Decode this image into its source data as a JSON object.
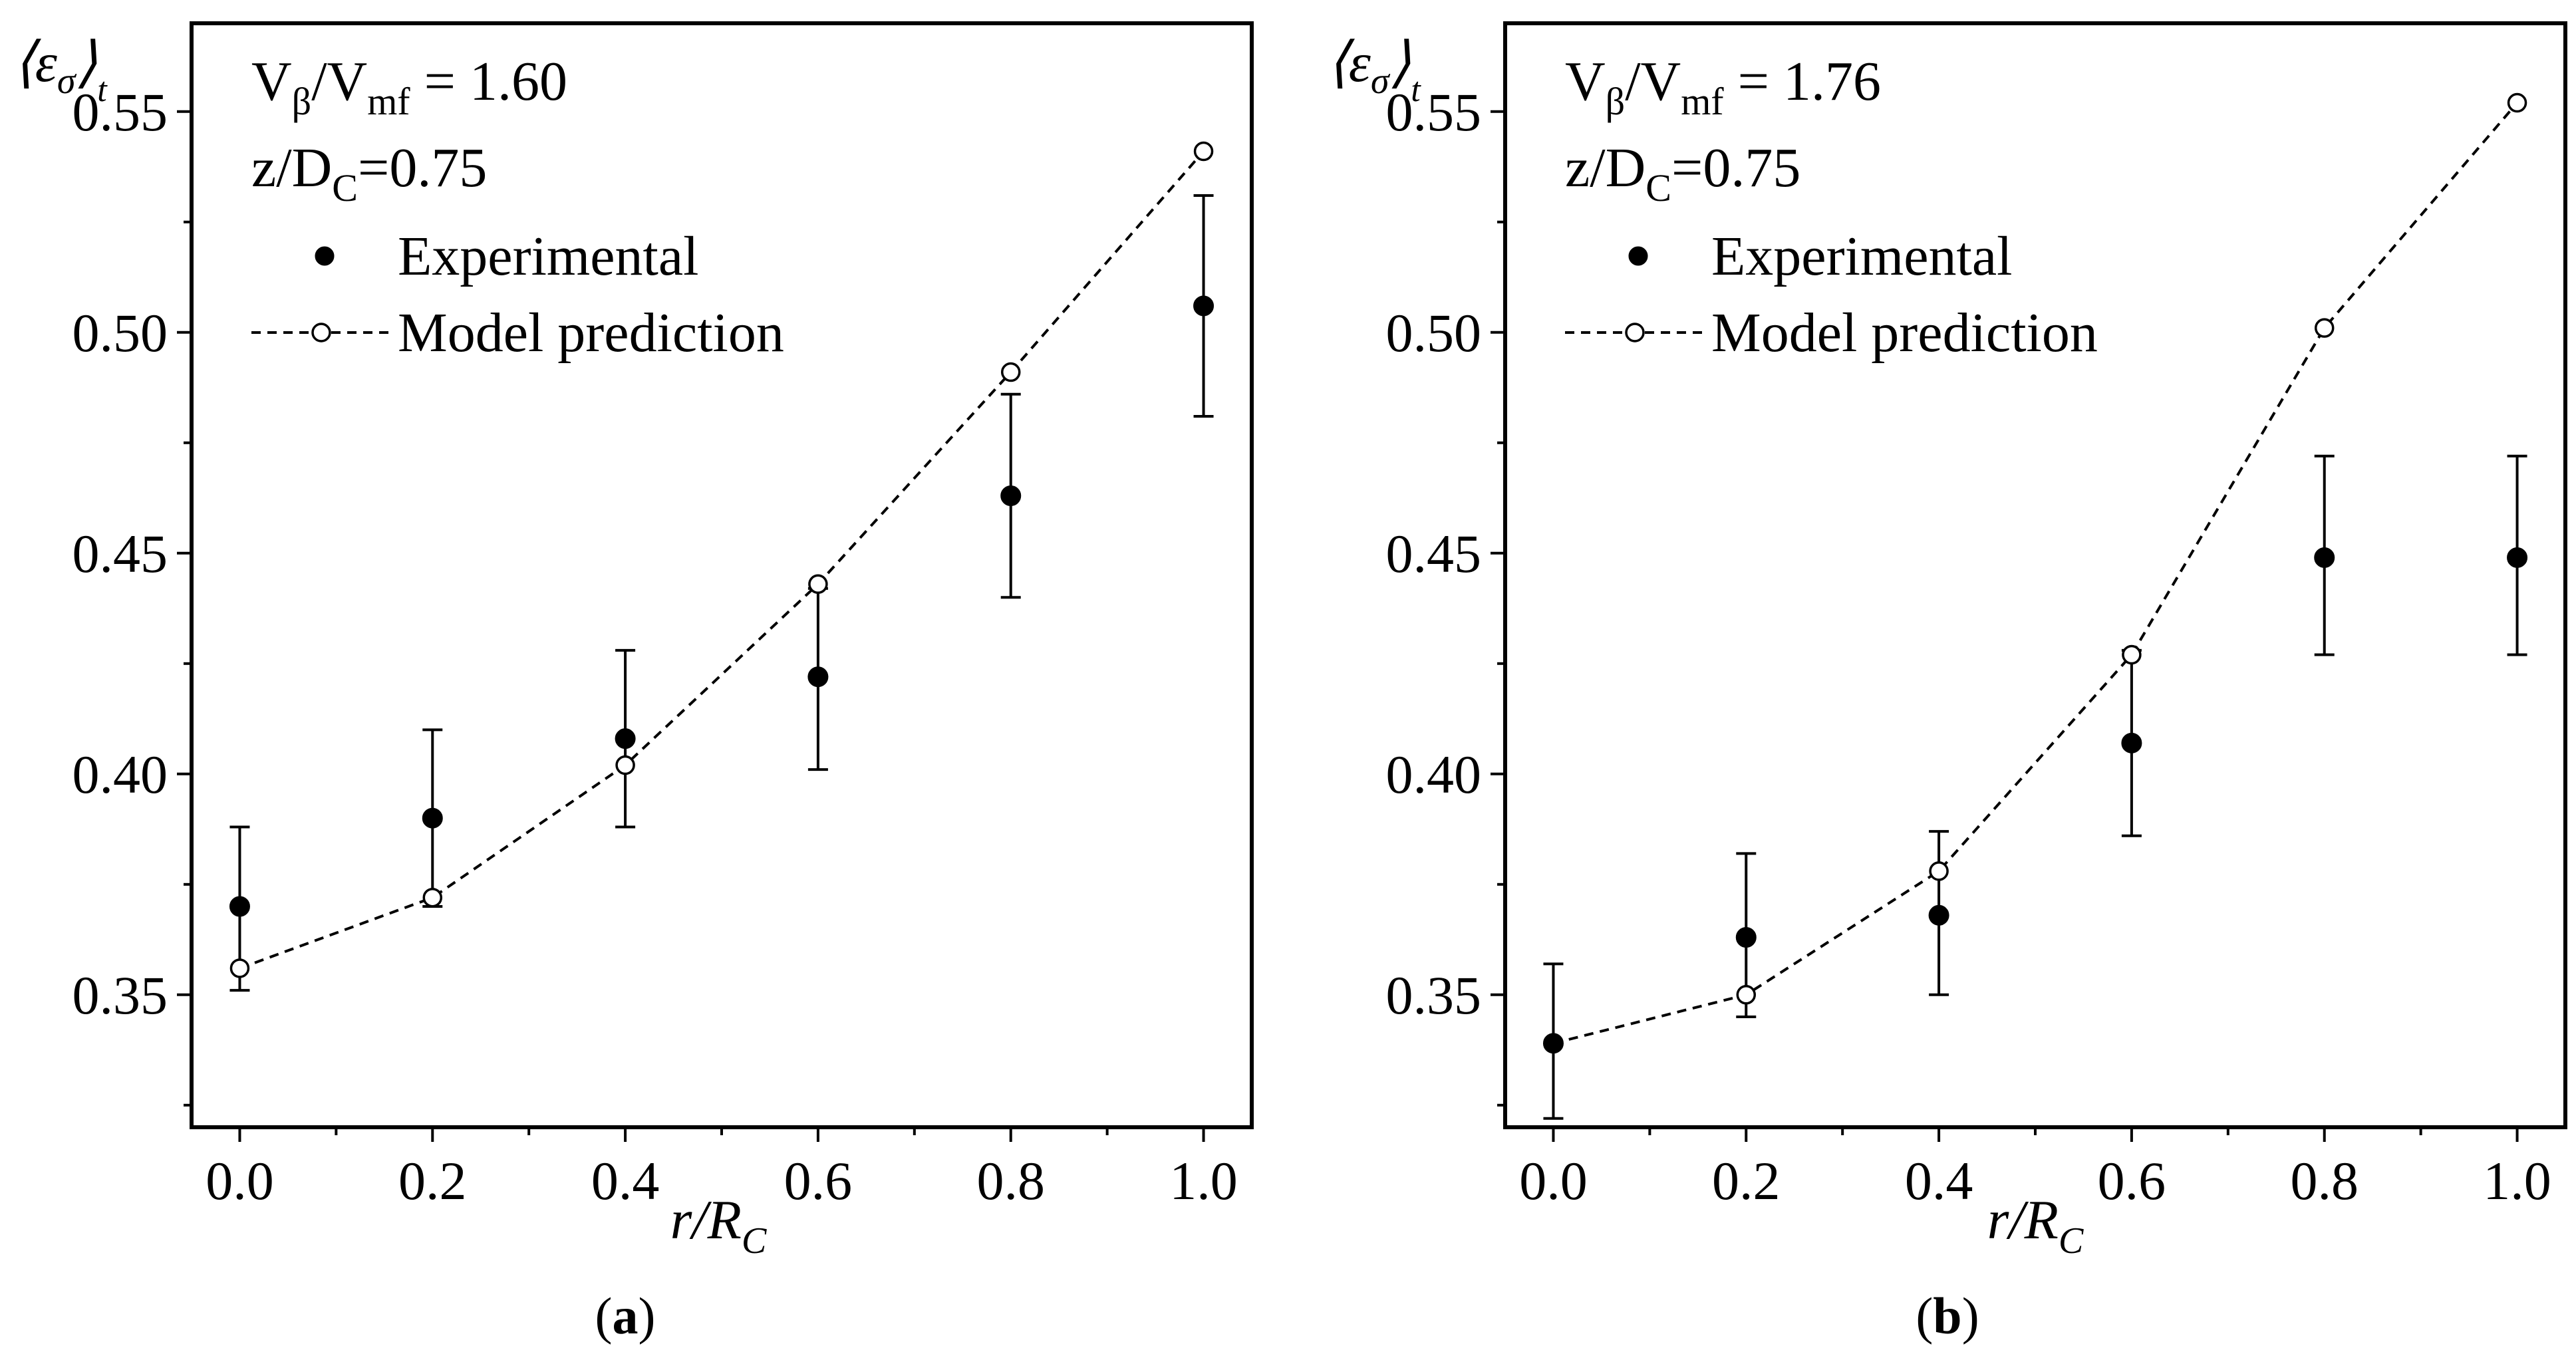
{
  "chart_data": [
    {
      "type": "scatter",
      "panel_label": "a",
      "ylabel": "⟨ε",
      "ylabel_sub": "σ",
      "ylabel_close": "⟩",
      "ylabel_t": "t",
      "xlabel_main": "r/R",
      "xlabel_sub": "C",
      "xlim": [
        -0.05,
        1.05
      ],
      "ylim": [
        0.32,
        0.57
      ],
      "xticks": [
        0.0,
        0.2,
        0.4,
        0.6,
        0.8,
        1.0
      ],
      "xtick_labels": [
        "0.0",
        "0.2",
        "0.4",
        "0.6",
        "0.8",
        "1.0"
      ],
      "yticks": [
        0.35,
        0.4,
        0.45,
        0.5,
        0.55
      ],
      "ytick_labels": [
        "0.35",
        "0.40",
        "0.45",
        "0.50",
        "0.55"
      ],
      "annotation": {
        "ratio_v1": "V",
        "ratio_s1": "β",
        "ratio_slash": "/V",
        "ratio_s2": "mf",
        "ratio_value": " = 1.60",
        "z_prefix": "z/D",
        "z_sub": "C",
        "z_value": "=0.75"
      },
      "legend": {
        "experimental": "Experimental",
        "model": "Model prediction"
      },
      "series": [
        {
          "name": "Experimental",
          "x": [
            0.0,
            0.2,
            0.4,
            0.6,
            0.8,
            1.0
          ],
          "y": [
            0.37,
            0.39,
            0.408,
            0.422,
            0.463,
            0.506
          ],
          "err_low": [
            0.351,
            0.37,
            0.388,
            0.401,
            0.44,
            0.481
          ],
          "err_high": [
            0.388,
            0.41,
            0.428,
            0.442,
            0.486,
            0.531
          ]
        },
        {
          "name": "Model prediction",
          "x": [
            0.0,
            0.2,
            0.4,
            0.6,
            0.8,
            1.0
          ],
          "y": [
            0.356,
            0.372,
            0.402,
            0.443,
            0.491,
            0.541
          ]
        }
      ]
    },
    {
      "type": "scatter",
      "panel_label": "b",
      "ylabel": "⟨ε",
      "ylabel_sub": "σ",
      "ylabel_close": "⟩",
      "ylabel_t": "t",
      "xlabel_main": "r/R",
      "xlabel_sub": "C",
      "xlim": [
        -0.05,
        1.05
      ],
      "ylim": [
        0.32,
        0.57
      ],
      "xticks": [
        0.0,
        0.2,
        0.4,
        0.6,
        0.8,
        1.0
      ],
      "xtick_labels": [
        "0.0",
        "0.2",
        "0.4",
        "0.6",
        "0.8",
        "1.0"
      ],
      "yticks": [
        0.35,
        0.4,
        0.45,
        0.5,
        0.55
      ],
      "ytick_labels": [
        "0.35",
        "0.40",
        "0.45",
        "0.50",
        "0.55"
      ],
      "annotation": {
        "ratio_v1": "V",
        "ratio_s1": "β",
        "ratio_slash": "/V",
        "ratio_s2": "mf",
        "ratio_value": " = 1.76",
        "z_prefix": "z/D",
        "z_sub": "C",
        "z_value": "=0.75"
      },
      "legend": {
        "experimental": "Experimental",
        "model": "Model prediction"
      },
      "series": [
        {
          "name": "Experimental",
          "x": [
            0.0,
            0.2,
            0.4,
            0.6,
            0.8,
            1.0
          ],
          "y": [
            0.339,
            0.363,
            0.368,
            0.407,
            0.449,
            0.449
          ],
          "err_low": [
            0.322,
            0.345,
            0.35,
            0.386,
            0.427,
            0.427
          ],
          "err_high": [
            0.357,
            0.382,
            0.387,
            0.428,
            0.472,
            0.472
          ]
        },
        {
          "name": "Model prediction",
          "x": [
            0.0,
            0.2,
            0.4,
            0.6,
            0.8,
            1.0
          ],
          "y": [
            0.339,
            0.35,
            0.378,
            0.427,
            0.501,
            0.552
          ]
        }
      ]
    }
  ]
}
